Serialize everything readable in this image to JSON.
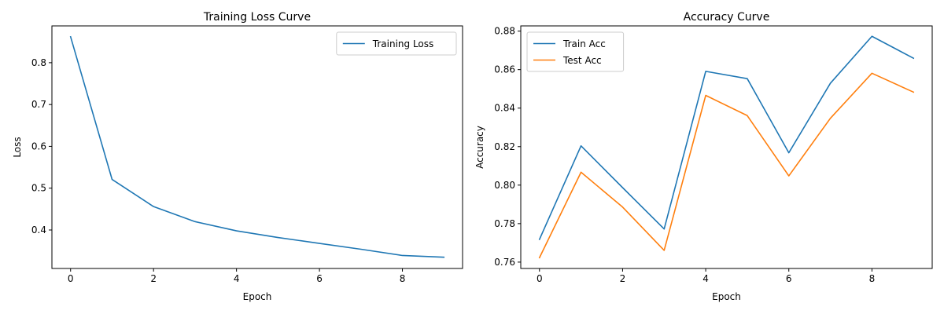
{
  "chart_data": [
    {
      "type": "line",
      "title": "Training Loss Curve",
      "xlabel": "Epoch",
      "ylabel": "Loss",
      "x": [
        0,
        1,
        2,
        3,
        4,
        5,
        6,
        7,
        8,
        9
      ],
      "xlim": [
        -0.45,
        9.45
      ],
      "ylim": [
        0.308,
        0.888
      ],
      "xticks": [
        0,
        2,
        4,
        6,
        8
      ],
      "yticks": [
        0.4,
        0.5,
        0.6,
        0.7,
        0.8
      ],
      "ytick_labels": [
        "0.4",
        "0.5",
        "0.6",
        "0.7",
        "0.8"
      ],
      "grid": false,
      "legend": "upper right",
      "series": [
        {
          "name": "Training Loss",
          "color": "#1f77b4",
          "values": [
            0.862,
            0.521,
            0.456,
            0.42,
            0.398,
            0.382,
            0.368,
            0.354,
            0.339,
            0.335
          ]
        }
      ]
    },
    {
      "type": "line",
      "title": "Accuracy Curve",
      "xlabel": "Epoch",
      "ylabel": "Accuracy",
      "x": [
        0,
        1,
        2,
        3,
        4,
        5,
        6,
        7,
        8,
        9
      ],
      "xlim": [
        -0.45,
        9.45
      ],
      "ylim": [
        0.7567,
        0.8827
      ],
      "xticks": [
        0,
        2,
        4,
        6,
        8
      ],
      "yticks": [
        0.76,
        0.78,
        0.8,
        0.82,
        0.84,
        0.86,
        0.88
      ],
      "ytick_labels": [
        "0.76",
        "0.78",
        "0.80",
        "0.82",
        "0.84",
        "0.86",
        "0.88"
      ],
      "grid": false,
      "legend": "upper left",
      "series": [
        {
          "name": "Train Acc",
          "color": "#1f77b4",
          "values": [
            0.7718,
            0.8204,
            0.7987,
            0.7772,
            0.8591,
            0.8553,
            0.8168,
            0.8529,
            0.8773,
            0.8659
          ]
        },
        {
          "name": "Test Acc",
          "color": "#ff7f0e",
          "values": [
            0.7623,
            0.8067,
            0.7886,
            0.7661,
            0.8466,
            0.8361,
            0.8048,
            0.8347,
            0.8581,
            0.8483
          ]
        }
      ]
    }
  ]
}
